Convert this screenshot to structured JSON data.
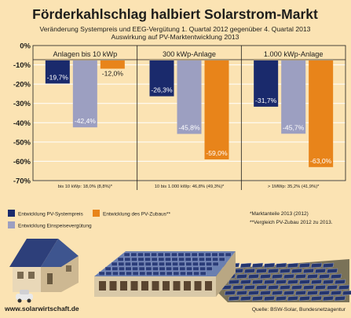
{
  "title": "Förderkahlschlag halbiert Solarstrom-Markt",
  "subtitle_line1": "Veränderung Systempreis und EEG-Vergütung 1. Quartal 2012 gegenüber 4. Quartal 2013",
  "subtitle_line2": "Auswirkung auf PV-Marktentwicklung 2013",
  "colors": {
    "background": "#fbe3b3",
    "navy": "#1a2a6c",
    "grey": "#9c9fc1",
    "orange": "#e8841a",
    "grid": "#ffffff",
    "text": "#1d1d1b"
  },
  "chart_data": {
    "type": "bar",
    "categories": [
      "Anlagen bis 10 kWp",
      "300 kWp-Anlage",
      "1.000 kWp-Anlage"
    ],
    "category_notes": [
      "bis 10 kWp: 18,0% (8,8%)*",
      "10 bis 1.000 kWp: 46,8% (49,3%)*",
      "> 1MWp: 35,2% (41,9%)*"
    ],
    "series": [
      {
        "name": "Entwicklung PV-Systempreis",
        "color": "#1a2a6c",
        "values": [
          -19.7,
          -26.3,
          -31.7
        ],
        "labels": [
          "-19,7%",
          "-26,3%",
          "-31,7%"
        ]
      },
      {
        "name": "Entwicklung Einspeisevergütung",
        "color": "#9c9fc1",
        "values": [
          -42.4,
          -45.8,
          -45.7
        ],
        "labels": [
          "-42,4%",
          "-45,8%",
          "-45,7%"
        ]
      },
      {
        "name": "Entwicklung des PV-Zubaus**",
        "color": "#e8841a",
        "values": [
          -12.0,
          -59.0,
          -63.0
        ],
        "labels": [
          "-12,0%",
          "-59,0%",
          "-63,0%"
        ]
      }
    ],
    "ylim": [
      -70,
      0
    ],
    "yticks": [
      0,
      -10,
      -20,
      -30,
      -40,
      -50,
      -60,
      -70
    ],
    "ytick_labels": [
      "0%",
      "-10%",
      "-20%",
      "-30%",
      "-40%",
      "-50%",
      "-60%",
      "-70%"
    ],
    "grid": true,
    "legend_placement": "bottom"
  },
  "legend": {
    "items": [
      {
        "label": "Entwicklung PV-Systempreis",
        "color": "#1a2a6c"
      },
      {
        "label": "Entwicklung des PV-Zubaus**",
        "color": "#e8841a"
      },
      {
        "label": "Entwicklung Einspeisevergütung",
        "color": "#9c9fc1"
      }
    ]
  },
  "footnotes": {
    "note1": "*Marktanteile 2013 (2012)",
    "note2": "**Vergleich PV-Zubau  2012 zu 2013."
  },
  "footer": {
    "website": "www.solarwirtschaft.de",
    "source": "Quelle: BSW-Solar, Bundesnetzagentur"
  },
  "icons": [
    "house-icon",
    "factory-icon",
    "solar-field-icon",
    "car-icon"
  ]
}
